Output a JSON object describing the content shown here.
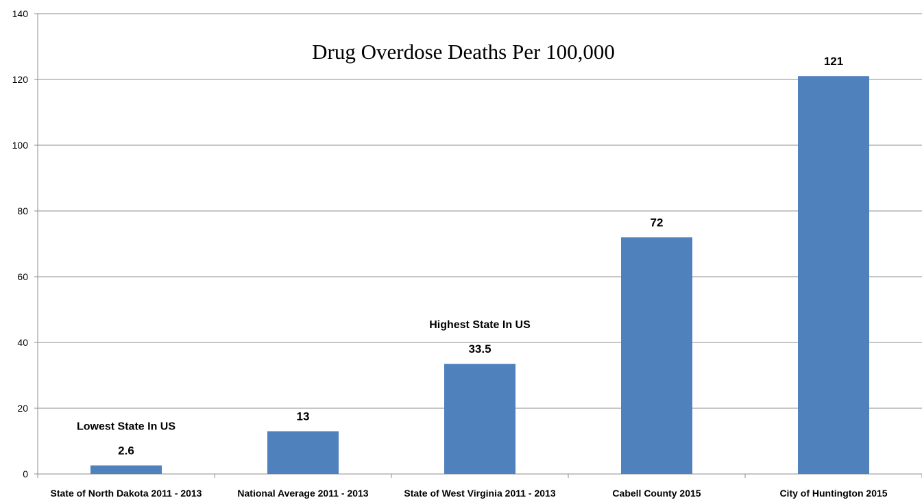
{
  "chart_data": {
    "type": "bar",
    "title": "Drug Overdose Deaths Per 100,000",
    "xlabel": "",
    "ylabel": "",
    "categories": [
      "State of North Dakota 2011 - 2013",
      "National Average 2011 - 2013",
      "State of West Virginia 2011 - 2013",
      "Cabell County 2015",
      "City of Huntington 2015"
    ],
    "values": [
      2.6,
      13,
      33.5,
      72,
      121
    ],
    "data_labels": [
      "2.6",
      "13",
      "33.5",
      "72",
      "121"
    ],
    "annotations": [
      {
        "category_index": 0,
        "text": "Lowest State In US"
      },
      {
        "category_index": 2,
        "text": "Highest State In US"
      }
    ],
    "ylim": [
      0,
      140
    ],
    "yticks": [
      0,
      20,
      40,
      60,
      80,
      100,
      120,
      140
    ],
    "grid": true,
    "legend": "none",
    "bar_color": "#4f81bd",
    "grid_color": "#8c8c8c"
  }
}
